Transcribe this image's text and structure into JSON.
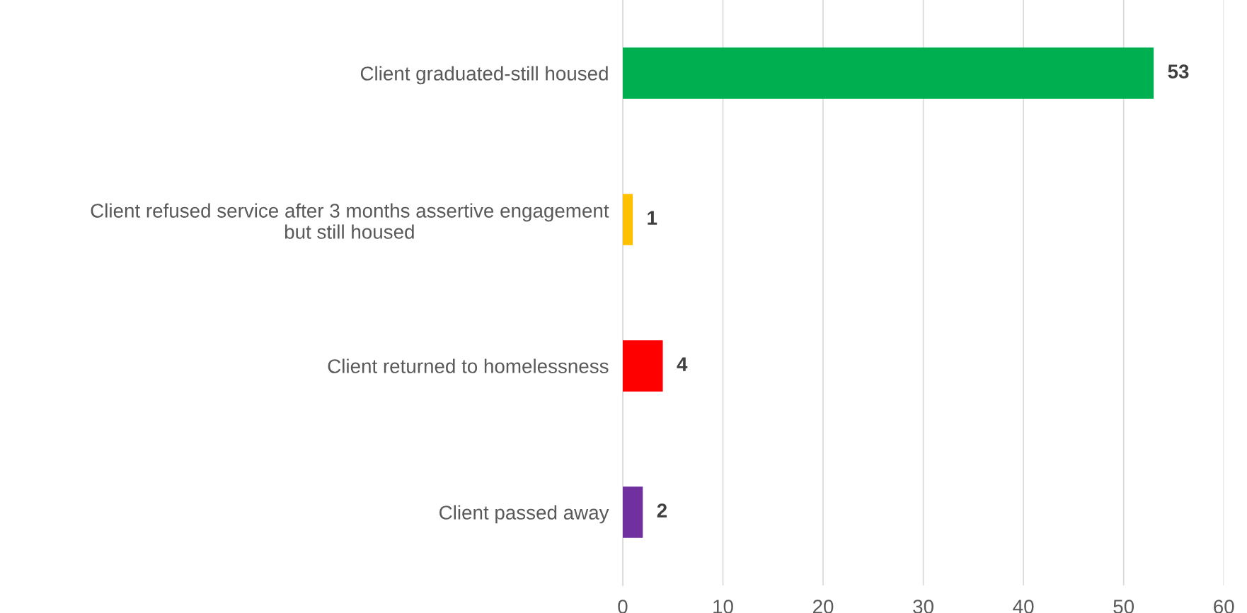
{
  "chart_data": {
    "type": "bar",
    "orientation": "horizontal",
    "categories": [
      "Client graduated-still housed",
      "Client refused service after 3 months assertive engagement\nbut still housed",
      "Client returned to homelessness",
      "Client passed away"
    ],
    "values": [
      53,
      1,
      4,
      2
    ],
    "colors": [
      "#00b050",
      "#ffc000",
      "#ff0000",
      "#7030a0"
    ],
    "xlim": [
      0,
      60
    ],
    "xticks": [
      0,
      10,
      20,
      30,
      40,
      50,
      60
    ],
    "grid": "x",
    "data_labels": true
  }
}
